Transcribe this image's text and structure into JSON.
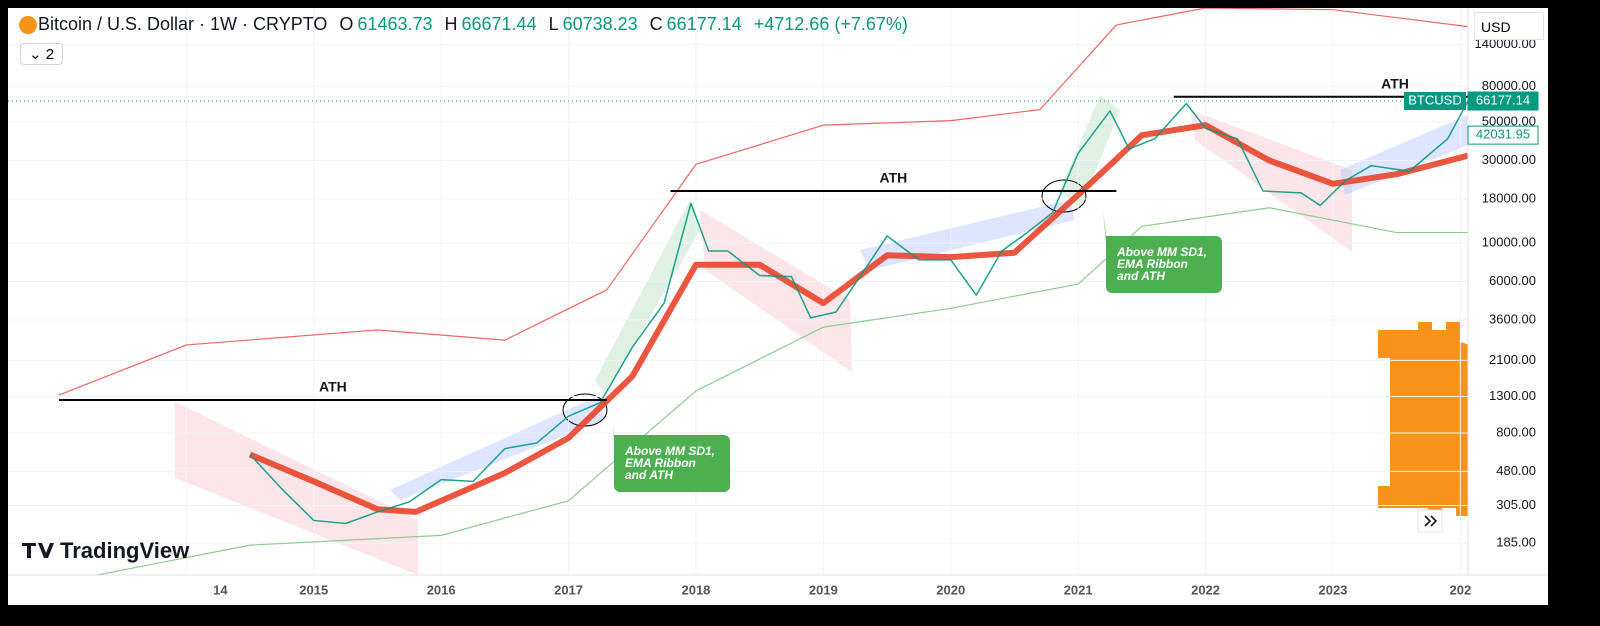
{
  "header": {
    "symbol": "Bitcoin / U.S. Dollar · 1W · CRYPTO",
    "open_label": "O",
    "open": "61463.73",
    "high_label": "H",
    "high": "66671.44",
    "low_label": "L",
    "low": "60738.23",
    "close_label": "C",
    "close": "66177.14",
    "change": "+4712.66 (+7.67%)",
    "indicators": "2"
  },
  "currency": "USD",
  "watermark": "TradingView",
  "chart_data": {
    "type": "line",
    "log_scale": true,
    "xlim": [
      2012.6,
      2024.06
    ],
    "ylim": [
      121,
      228000
    ],
    "xticks": [
      {
        "value": 2014,
        "label": "14"
      },
      2015,
      2016,
      2017,
      2018,
      2019,
      2020,
      2021,
      2022,
      2023,
      {
        "value": 2024,
        "label": "202"
      }
    ],
    "yticks": [
      {
        "value": 185,
        "label": "185.00"
      },
      {
        "value": 305,
        "label": "305.00"
      },
      {
        "value": 480,
        "label": "480.00"
      },
      {
        "value": 800,
        "label": "800.00"
      },
      {
        "value": 1300,
        "label": "1300.00"
      },
      {
        "value": 2100,
        "label": "2100.00"
      },
      {
        "value": 3600,
        "label": "3600.00"
      },
      {
        "value": 6000,
        "label": "6000.00"
      },
      {
        "value": 10000,
        "label": "10000.00"
      },
      {
        "value": 18000,
        "label": "18000.00"
      },
      {
        "value": 30000,
        "label": "30000.00"
      },
      {
        "value": 50000,
        "label": "50000.00"
      },
      {
        "value": 80000,
        "label": "80000.00"
      },
      {
        "value": 140000,
        "label": "140000.00"
      }
    ],
    "series": [
      {
        "color": "#ef5350",
        "width": 1.2,
        "x": [
          2013.0,
          2014.0,
          2015.5,
          2016.5,
          2017.3,
          2018.0,
          2019.0,
          2020.0,
          2020.7,
          2021.3,
          2022.0,
          2023.0,
          2024.06
        ],
        "values": [
          1325,
          2580,
          3150,
          2750,
          5370,
          28500,
          48000,
          51000,
          59000,
          182000,
          228000,
          223000,
          178000
        ]
      },
      {
        "color": "#81c784",
        "width": 1.2,
        "x": [
          2013.3,
          2014.5,
          2016.0,
          2017.0,
          2018.0,
          2019.0,
          2020.0,
          2021.0,
          2021.5,
          2022.5,
          2023.5,
          2024.06
        ],
        "values": [
          121,
          180,
          205,
          325,
          1400,
          3270,
          4200,
          5800,
          12500,
          16000,
          11500,
          11500
        ]
      },
      {
        "color": "#e8442a",
        "width": 6,
        "x": [
          2014.5,
          2015.0,
          2015.5,
          2015.8,
          2016.5,
          2017.0,
          2017.5,
          2018.0,
          2018.5,
          2019.0,
          2019.5,
          2020.0,
          2020.5,
          2021.0,
          2021.5,
          2022.0,
          2022.5,
          2023.0,
          2023.5,
          2024.06
        ],
        "values": [
          600,
          420,
          290,
          280,
          470,
          750,
          1700,
          7500,
          7500,
          4500,
          8500,
          8300,
          8800,
          19000,
          42000,
          48000,
          30000,
          22000,
          25000,
          32000
        ]
      },
      {
        "color": "#089981",
        "width": 1.5,
        "x": [
          2014.5,
          2014.75,
          2015.0,
          2015.25,
          2015.5,
          2015.75,
          2016.0,
          2016.25,
          2016.5,
          2016.75,
          2017.0,
          2017.25,
          2017.5,
          2017.75,
          2017.96,
          2018.1,
          2018.25,
          2018.5,
          2018.75,
          2018.9,
          2019.1,
          2019.4,
          2019.5,
          2019.75,
          2020.0,
          2020.2,
          2020.4,
          2020.6,
          2020.8,
          2021.0,
          2021.25,
          2021.4,
          2021.6,
          2021.85,
          2022.0,
          2022.25,
          2022.45,
          2022.75,
          2022.9,
          2023.1,
          2023.3,
          2023.6,
          2023.9,
          2024.06
        ],
        "values": [
          600,
          380,
          250,
          240,
          280,
          320,
          430,
          420,
          650,
          700,
          1000,
          1200,
          2500,
          4500,
          17000,
          9000,
          9000,
          6500,
          6400,
          3700,
          4000,
          8500,
          11000,
          8000,
          8000,
          5000,
          9000,
          11500,
          15000,
          33000,
          58000,
          35000,
          40000,
          64000,
          46000,
          40000,
          20000,
          19500,
          16500,
          23000,
          28000,
          26000,
          40000,
          66177.14
        ]
      }
    ],
    "ath_lines": [
      {
        "label": "ATH",
        "value": 1240,
        "x": [
          2013.0,
          2017.3
        ]
      },
      {
        "label": "ATH",
        "value": 20000,
        "x": [
          2017.8,
          2021.3
        ]
      },
      {
        "label": "ATH",
        "value": 70000,
        "x": [
          2021.75,
          2024.06
        ]
      }
    ],
    "callouts": [
      {
        "lines": [
          "Above MM SD1,",
          "EMA Ribbon",
          "and ATH"
        ]
      },
      {
        "lines": [
          "Above MM SD1,",
          "EMA Ribbon",
          "and ATH"
        ]
      }
    ],
    "price_tags": [
      {
        "name": "BTCUSD",
        "value": 66177.14,
        "color": "#089981"
      },
      {
        "value": 42031.95,
        "color": "#089981"
      }
    ]
  }
}
